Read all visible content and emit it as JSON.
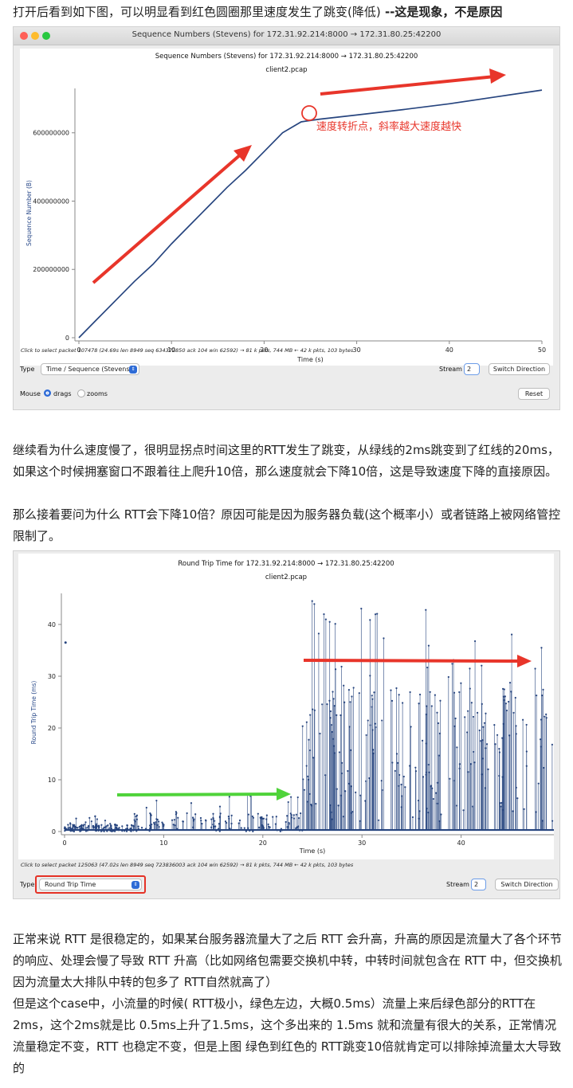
{
  "intro": {
    "text": "打开后看到如下图，可以明显看到红色圆圈那里速度发生了跳变(降低)",
    "bold": " --这是现象，不是原因"
  },
  "window1": {
    "title": "Sequence Numbers (Stevens) for 172.31.92.214:8000 → 172.31.80.25:42200",
    "plot_title": "Sequence Numbers (Stevens) for 172.31.92.214:8000 → 172.31.80.25:42200",
    "plot_subtitle": "client2.pcap",
    "annotation": "速度转折点，斜率越大速度越快",
    "status": "Click to select packet 107478 (24.69s len 8949 seq 634372850 ack 104 win 62592) → 81 k pkts, 744 MB ← 42 k pkts, 103 bytes",
    "type_label": "Type",
    "type_value": "Time / Sequence (Stevens)",
    "stream_label": "Stream",
    "stream_value": "2",
    "switch_button": "Switch Direction",
    "mouse_label": "Mouse",
    "drags_label": "drags",
    "zooms_label": "zooms",
    "reset_button": "Reset",
    "colors": {
      "line": "#27457f",
      "arrow": "#e8352a"
    }
  },
  "middle": {
    "p1": "继续看为什么速度慢了，很明显拐点时间这里的RTT发生了跳变，从绿线的2ms跳变到了红线的20ms，如果这个时候拥塞窗口不跟着往上爬升10倍，那么速度就会下降10倍，这是导致速度下降的直接原因。",
    "p2": "那么接着要问为什么 RTT会下降10倍？原因可能是因为服务器负载(这个概率小）或者链路上被网络管控限制了。"
  },
  "window2": {
    "plot_title": "Round Trip Time for 172.31.92.214:8000 → 172.31.80.25:42200",
    "plot_subtitle": "client2.pcap",
    "status": "Click to select packet 125063 (47.02s len 8949 seq 723836003 ack 104 win 62592) → 81 k pkts, 744 MB ← 42 k pkts, 103 bytes",
    "type_label": "Type",
    "type_value": "Round Trip Time",
    "stream_label": "Stream",
    "stream_value": "2",
    "switch_button": "Switch Direction",
    "colors": {
      "points": "#27457f",
      "green_arrow": "#4fd33a",
      "red_arrow": "#e8352a"
    }
  },
  "bottom": {
    "p1": "正常来说 RTT 是很稳定的，如果某台服务器流量大了之后 RTT 会升高，升高的原因是流量大了各个环节的响应、处理会慢了导致 RTT 升高（比如网络包需要交换机中转，中转时间就包含在 RTT 中，但交换机因为流量太大排队中转的包多了 RTT自然就高了）",
    "p2": "但是这个case中，小流量的时候( RTT极小，绿色左边，大概0.5ms）流量上来后绿色部分的RTT在2ms，这个2ms就是比 0.5ms上升了1.5ms，这个多出来的 1.5ms 就和流量有很大的关系，正常情况流量稳定不变，RTT 也稳定不变，但是上图 绿色到红色的 RTT跳变10倍就肯定可以排除掉流量太大导致的"
  },
  "chart_data": [
    {
      "type": "line",
      "title": "Sequence Numbers (Stevens) for 172.31.92.214:8000 → 172.31.80.25:42200",
      "subtitle": "client2.pcap",
      "xlabel": "Time (s)",
      "ylabel": "Sequence Number (B)",
      "xlim": [
        0,
        50
      ],
      "ylim": [
        0,
        730000000
      ],
      "xticks": [
        0,
        10,
        20,
        30,
        40,
        50
      ],
      "yticks": [
        0,
        200000000,
        400000000,
        600000000
      ],
      "ytick_labels": [
        "0",
        "200000000",
        "400000000",
        "600000000"
      ],
      "x": [
        0,
        2,
        4,
        6,
        8,
        10,
        12,
        14,
        16,
        18,
        20,
        22,
        24,
        26,
        30,
        35,
        40,
        45,
        50
      ],
      "y": [
        0,
        55000000,
        110000000,
        165000000,
        215000000,
        275000000,
        330000000,
        385000000,
        440000000,
        490000000,
        545000000,
        600000000,
        632000000,
        640000000,
        652000000,
        668000000,
        685000000,
        705000000,
        725000000
      ]
    },
    {
      "type": "scatter",
      "title": "Round Trip Time for 172.31.92.214:8000 → 172.31.80.25:42200",
      "subtitle": "client2.pcap",
      "xlabel": "Time (s)",
      "ylabel": "Round Trip Time (ms)",
      "xlim": [
        0,
        50
      ],
      "ylim": [
        0,
        46
      ],
      "xticks": [
        0,
        10,
        20,
        30,
        40,
        50
      ],
      "yticks": [
        0,
        10,
        20,
        30,
        40
      ],
      "segments": [
        {
          "range": [
            0,
            7
          ],
          "typical_ms": 0.5,
          "peak_ms": 3
        },
        {
          "range": [
            7,
            24
          ],
          "typical_ms": 2,
          "peak_ms": 8
        },
        {
          "range": [
            24,
            50
          ],
          "typical_ms": 20,
          "peak_ms": 45
        }
      ],
      "outlier": {
        "x": 0.1,
        "y": 36.5
      }
    }
  ]
}
